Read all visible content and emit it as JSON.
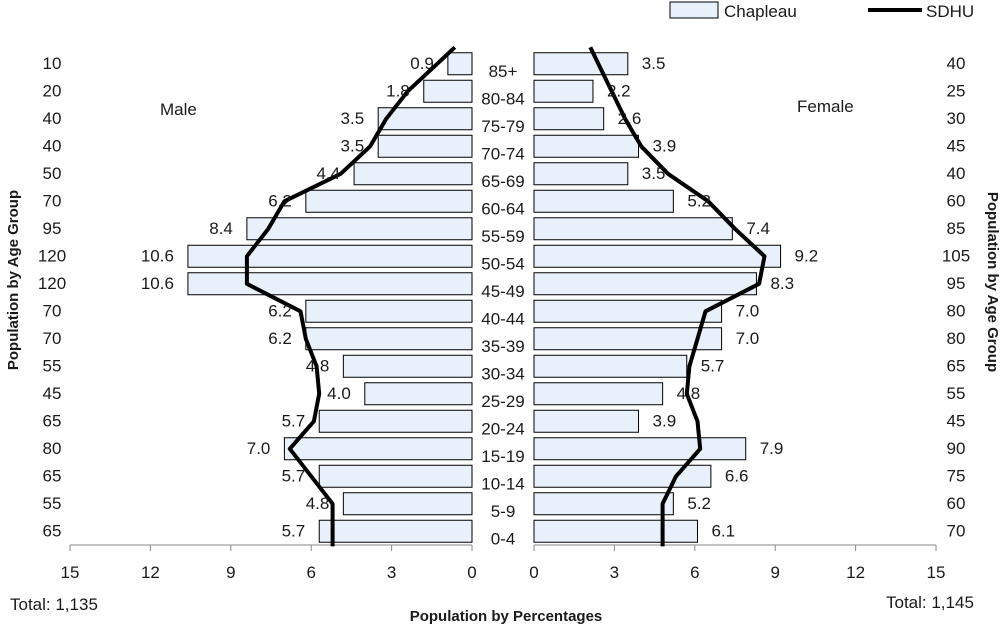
{
  "chart_data": {
    "type": "bar",
    "subtype": "population-pyramid",
    "legend": {
      "position": "top-right",
      "items": [
        {
          "name": "Chapleau",
          "kind": "bar",
          "color": "#e8f0fb"
        },
        {
          "name": "SDHU",
          "kind": "line",
          "color": "#000000"
        }
      ]
    },
    "xlabel": "Population by Percentages",
    "ylabel_left": "Population by Age Group",
    "ylabel_right": "Population by Age Group",
    "male_label": "Male",
    "female_label": "Female",
    "male_total": "Total:  1,135",
    "female_total": "Total:  1,145",
    "xlim": [
      0,
      15
    ],
    "x_ticks": [
      "15",
      "12",
      "9",
      "6",
      "3",
      "0",
      "0",
      "3",
      "6",
      "9",
      "12",
      "15"
    ],
    "categories": [
      "85+",
      "80-84",
      "75-79",
      "70-74",
      "65-69",
      "60-64",
      "55-59",
      "50-54",
      "45-49",
      "40-44",
      "35-39",
      "30-34",
      "25-29",
      "20-24",
      "15-19",
      "10-14",
      "5-9",
      "0-4"
    ],
    "male_values": [
      0.9,
      1.8,
      3.5,
      3.5,
      4.4,
      6.2,
      8.4,
      10.6,
      10.6,
      6.2,
      6.2,
      4.8,
      4.0,
      5.7,
      7.0,
      5.7,
      4.8,
      5.7
    ],
    "male_labels": [
      "0.9",
      "1.8",
      "3.5",
      "3.5",
      "4.4",
      "6.2",
      "8.4",
      "10.6",
      "10.6",
      "6.2",
      "6.2",
      "4.8",
      "4.0",
      "5.7",
      "7.0",
      "5.7",
      "4.8",
      "5.7"
    ],
    "female_values": [
      3.5,
      2.2,
      2.6,
      3.9,
      3.5,
      5.2,
      7.4,
      9.2,
      8.3,
      7.0,
      7.0,
      5.7,
      4.8,
      3.9,
      7.9,
      6.6,
      5.2,
      6.1
    ],
    "female_labels": [
      "3.5",
      "2.2",
      "2.6",
      "3.9",
      "3.5",
      "5.2",
      "7.4",
      "9.2",
      "8.3",
      "7.0",
      "7.0",
      "5.7",
      "4.8",
      "3.9",
      "7.9",
      "6.6",
      "5.2",
      "6.1"
    ],
    "male_counts": [
      "10",
      "20",
      "40",
      "40",
      "50",
      "70",
      "95",
      "120",
      "120",
      "70",
      "70",
      "55",
      "45",
      "65",
      "80",
      "65",
      "55",
      "65"
    ],
    "female_counts": [
      "40",
      "25",
      "30",
      "45",
      "40",
      "60",
      "85",
      "105",
      "95",
      "80",
      "80",
      "65",
      "55",
      "45",
      "90",
      "75",
      "60",
      "70"
    ],
    "sdhu_male": [
      1.3,
      2.4,
      3.2,
      3.8,
      4.9,
      7.0,
      7.6,
      8.4,
      8.4,
      6.4,
      6.2,
      5.8,
      5.7,
      5.9,
      6.8,
      6.0,
      5.2,
      5.2
    ],
    "sdhu_female": [
      2.4,
      2.9,
      3.4,
      4.0,
      5.0,
      6.5,
      7.5,
      8.6,
      8.4,
      6.4,
      6.1,
      5.8,
      5.7,
      6.1,
      6.2,
      5.3,
      4.8,
      4.8
    ],
    "bar_fill": "#e8f0fb",
    "bar_stroke": "#000000"
  }
}
